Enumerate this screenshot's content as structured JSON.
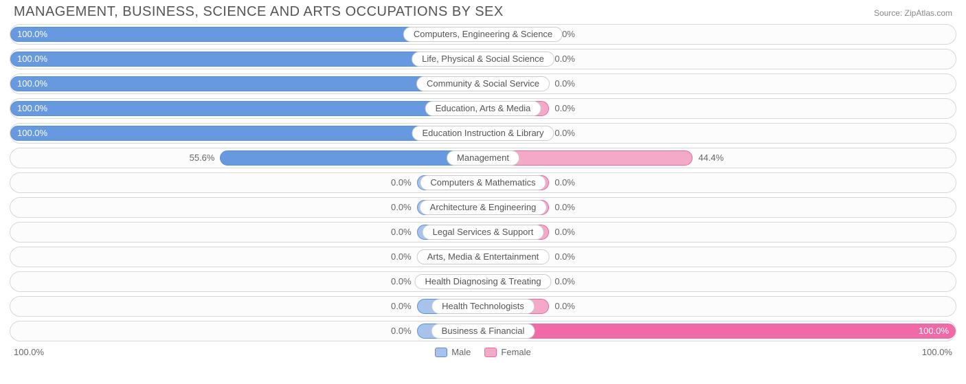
{
  "title": "MANAGEMENT, BUSINESS, SCIENCE AND ARTS OCCUPATIONS BY SEX",
  "source_label": "Source: ZipAtlas.com",
  "axis": {
    "left": "100.0%",
    "right": "100.0%"
  },
  "legend": {
    "male_label": "Male",
    "female_label": "Female"
  },
  "colors": {
    "male_fill_full": "#6699e0",
    "male_fill_light": "#a7c3ec",
    "male_border": "#5a8fd6",
    "female_fill_full": "#ef6aa7",
    "female_fill_light": "#f4a9c8",
    "female_border": "#e86aa0",
    "row_border": "#d8d8d8",
    "text": "#666666",
    "title_text": "#555555"
  },
  "min_bar_pct": 14,
  "rows": [
    {
      "label": "Computers, Engineering & Science",
      "male_pct": 100.0,
      "male_text": "100.0%",
      "female_pct": 0.0,
      "female_text": "0.0%"
    },
    {
      "label": "Life, Physical & Social Science",
      "male_pct": 100.0,
      "male_text": "100.0%",
      "female_pct": 0.0,
      "female_text": "0.0%"
    },
    {
      "label": "Community & Social Service",
      "male_pct": 100.0,
      "male_text": "100.0%",
      "female_pct": 0.0,
      "female_text": "0.0%"
    },
    {
      "label": "Education, Arts & Media",
      "male_pct": 100.0,
      "male_text": "100.0%",
      "female_pct": 0.0,
      "female_text": "0.0%"
    },
    {
      "label": "Education Instruction & Library",
      "male_pct": 100.0,
      "male_text": "100.0%",
      "female_pct": 0.0,
      "female_text": "0.0%"
    },
    {
      "label": "Management",
      "male_pct": 55.6,
      "male_text": "55.6%",
      "female_pct": 44.4,
      "female_text": "44.4%"
    },
    {
      "label": "Computers & Mathematics",
      "male_pct": 0.0,
      "male_text": "0.0%",
      "female_pct": 0.0,
      "female_text": "0.0%"
    },
    {
      "label": "Architecture & Engineering",
      "male_pct": 0.0,
      "male_text": "0.0%",
      "female_pct": 0.0,
      "female_text": "0.0%"
    },
    {
      "label": "Legal Services & Support",
      "male_pct": 0.0,
      "male_text": "0.0%",
      "female_pct": 0.0,
      "female_text": "0.0%"
    },
    {
      "label": "Arts, Media & Entertainment",
      "male_pct": 0.0,
      "male_text": "0.0%",
      "female_pct": 0.0,
      "female_text": "0.0%"
    },
    {
      "label": "Health Diagnosing & Treating",
      "male_pct": 0.0,
      "male_text": "0.0%",
      "female_pct": 0.0,
      "female_text": "0.0%"
    },
    {
      "label": "Health Technologists",
      "male_pct": 0.0,
      "male_text": "0.0%",
      "female_pct": 0.0,
      "female_text": "0.0%"
    },
    {
      "label": "Business & Financial",
      "male_pct": 0.0,
      "male_text": "0.0%",
      "female_pct": 100.0,
      "female_text": "100.0%"
    }
  ]
}
